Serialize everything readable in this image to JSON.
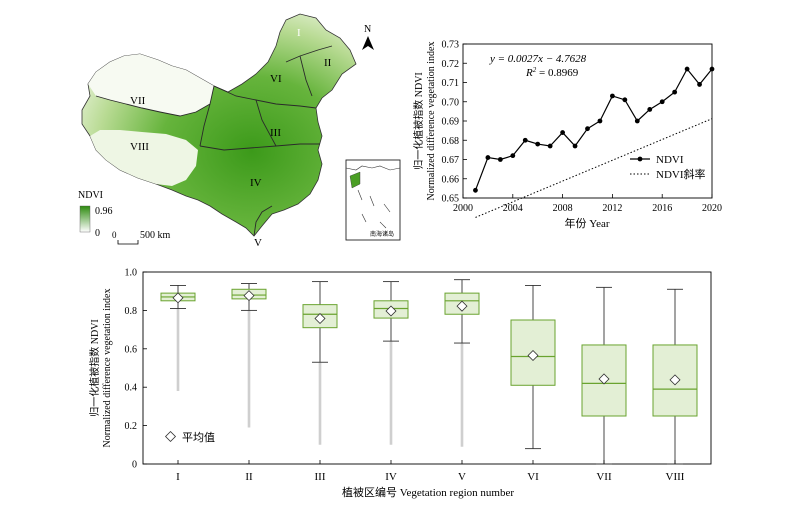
{
  "map": {
    "legend_title": "NDVI",
    "legend_max": "0.96",
    "legend_min": "0",
    "scale_label": "500 km",
    "north_label": "N",
    "inset_label": "南海诸岛",
    "region_labels": [
      "I",
      "II",
      "III",
      "IV",
      "V",
      "VI",
      "VII",
      "VIII"
    ],
    "colors": {
      "high": "#2e8b0f",
      "low": "#ffffff"
    }
  },
  "chart_data": [
    {
      "type": "line",
      "id": "trend",
      "x": [
        2001,
        2002,
        2003,
        2004,
        2005,
        2006,
        2007,
        2008,
        2009,
        2010,
        2011,
        2012,
        2013,
        2014,
        2015,
        2016,
        2017,
        2018,
        2019,
        2020
      ],
      "series": [
        {
          "name": "NDVI",
          "values": [
            0.654,
            0.671,
            0.67,
            0.672,
            0.68,
            0.678,
            0.677,
            0.684,
            0.677,
            0.686,
            0.69,
            0.703,
            0.701,
            0.69,
            0.696,
            0.7,
            0.705,
            0.717,
            0.709,
            0.717
          ]
        },
        {
          "name": "NDVI斜率",
          "style": "dotted",
          "fit": {
            "slope": 0.0027,
            "intercept": -4.7628
          }
        }
      ],
      "equation": "y = 0.0027x − 4.7628",
      "r2_label": "R",
      "r2_sup": "2",
      "r2_value": " = 0.8969",
      "xlabel": "年份 Year",
      "ylabel_cn": "归一化植被指数 NDVI",
      "ylabel_en": "Normalized difference vegetation index",
      "xlim": [
        2000,
        2020
      ],
      "ylim": [
        0.65,
        0.73
      ],
      "xticks": [
        2000,
        2004,
        2008,
        2012,
        2016,
        2020
      ],
      "yticks": [
        0.65,
        0.66,
        0.67,
        0.68,
        0.69,
        0.7,
        0.71,
        0.72,
        0.73
      ],
      "legend_position": "lower-right"
    },
    {
      "type": "box",
      "id": "regions",
      "categories": [
        "I",
        "II",
        "III",
        "IV",
        "V",
        "VI",
        "VII",
        "VIII"
      ],
      "boxes": [
        {
          "min": 0.81,
          "q1": 0.85,
          "median": 0.87,
          "q3": 0.89,
          "max": 0.93,
          "mean": 0.865,
          "outlier_low": 0.38
        },
        {
          "min": 0.8,
          "q1": 0.86,
          "median": 0.88,
          "q3": 0.91,
          "max": 0.94,
          "mean": 0.877,
          "outlier_low": 0.19
        },
        {
          "min": 0.53,
          "q1": 0.71,
          "median": 0.78,
          "q3": 0.83,
          "max": 0.95,
          "mean": 0.758,
          "outlier_low": 0.1
        },
        {
          "min": 0.64,
          "q1": 0.76,
          "median": 0.81,
          "q3": 0.85,
          "max": 0.95,
          "mean": 0.797,
          "outlier_low": 0.1
        },
        {
          "min": 0.63,
          "q1": 0.78,
          "median": 0.85,
          "q3": 0.89,
          "max": 0.96,
          "mean": 0.822,
          "outlier_low": 0.09
        },
        {
          "min": 0.08,
          "q1": 0.41,
          "median": 0.56,
          "q3": 0.75,
          "max": 0.93,
          "mean": 0.565
        },
        {
          "min": 0.0,
          "q1": 0.25,
          "median": 0.42,
          "q3": 0.62,
          "max": 0.92,
          "mean": 0.443
        },
        {
          "min": 0.0,
          "q1": 0.25,
          "median": 0.39,
          "q3": 0.62,
          "max": 0.91,
          "mean": 0.438
        }
      ],
      "legend_label": "平均值",
      "xlabel": "植被区编号  Vegetation region number",
      "ylabel_cn": "归一化植被指数 NDVI",
      "ylabel_en": "Normalized difference vegetation index",
      "ylim": [
        0,
        1.0
      ],
      "yticks": [
        0,
        0.2,
        0.4,
        0.6,
        0.8,
        1.0
      ],
      "colors": {
        "box_fill": "#e3efd5",
        "box_edge": "#6aa32f",
        "outlier": "#cfcfcf"
      },
      "legend_position": "lower-left"
    }
  ]
}
